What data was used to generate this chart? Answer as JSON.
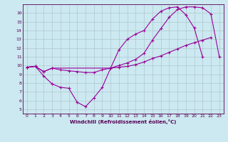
{
  "xlabel": "Windchill (Refroidissement éolien,°C)",
  "bg_color": "#cce8f0",
  "line_color": "#990099",
  "grid_color": "#b0c8d0",
  "xlim": [
    -0.5,
    23.5
  ],
  "ylim": [
    4.5,
    17.0
  ],
  "xticks": [
    0,
    1,
    2,
    3,
    4,
    5,
    6,
    7,
    8,
    9,
    10,
    11,
    12,
    13,
    14,
    15,
    16,
    17,
    18,
    19,
    20,
    21,
    22,
    23
  ],
  "yticks": [
    5,
    6,
    7,
    8,
    9,
    10,
    11,
    12,
    13,
    14,
    15,
    16
  ],
  "line1_x": [
    0,
    1,
    2,
    3,
    4,
    5,
    6,
    7,
    8,
    9,
    10,
    11,
    12,
    13,
    14,
    15,
    16,
    17,
    18,
    19,
    20,
    21
  ],
  "line1_y": [
    9.8,
    9.9,
    8.8,
    7.9,
    7.5,
    7.4,
    5.8,
    5.3,
    6.3,
    7.5,
    9.7,
    11.8,
    13.0,
    13.6,
    14.0,
    15.3,
    16.2,
    16.6,
    16.7,
    15.8,
    14.3,
    11.0
  ],
  "line2_x": [
    0,
    1,
    2,
    3,
    10,
    11,
    12,
    13,
    14,
    15,
    16,
    17,
    18,
    19,
    20,
    21,
    22,
    23
  ],
  "line2_y": [
    9.8,
    9.9,
    9.3,
    9.7,
    9.7,
    10.0,
    10.3,
    10.7,
    11.4,
    12.9,
    14.2,
    15.5,
    16.4,
    16.7,
    16.7,
    16.6,
    15.9,
    11.0
  ],
  "line3_x": [
    0,
    1,
    2,
    3,
    4,
    5,
    6,
    7,
    8,
    9,
    10,
    11,
    12,
    13,
    14,
    15,
    16,
    17,
    18,
    19,
    20,
    21,
    22
  ],
  "line3_y": [
    9.8,
    9.9,
    9.3,
    9.7,
    9.5,
    9.4,
    9.3,
    9.2,
    9.2,
    9.5,
    9.7,
    9.8,
    9.9,
    10.1,
    10.4,
    10.8,
    11.1,
    11.5,
    11.9,
    12.3,
    12.6,
    12.9,
    13.2
  ]
}
